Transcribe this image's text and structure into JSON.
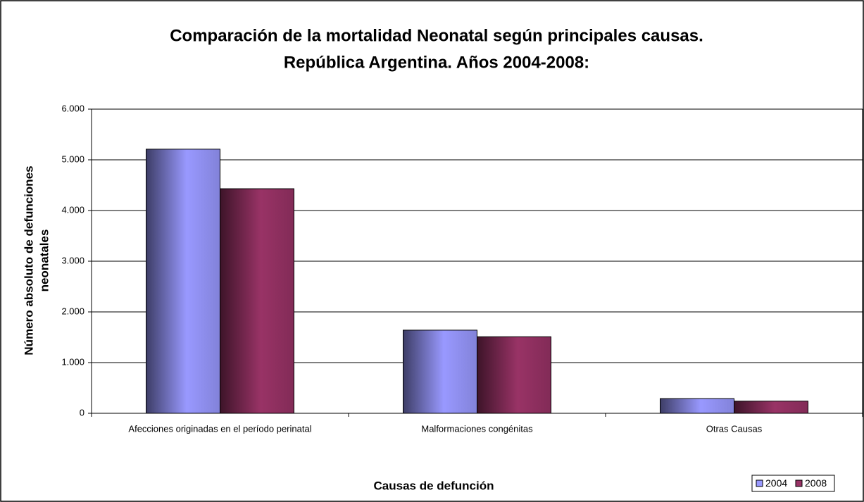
{
  "chart_data": {
    "type": "bar",
    "title": [
      "Comparación de la mortalidad Neonatal según principales causas.",
      "República Argentina. Años 2004-2008:"
    ],
    "x_label": "Causas de defunción",
    "y_label": [
      "Número absoluto de defunciones",
      "neonatales"
    ],
    "categories": [
      "Afecciones originadas en el período perinatal",
      "Malformaciones congénitas",
      "Otras Causas"
    ],
    "series": [
      {
        "name": "2004",
        "color": "#9999ff",
        "values": [
          5210,
          1640,
          290
        ]
      },
      {
        "name": "2008",
        "color": "#993366",
        "values": [
          4430,
          1510,
          240
        ]
      }
    ],
    "ylim": [
      0,
      6000
    ],
    "yticks": [
      0,
      {
        "value": 1000,
        "label": "1.000"
      },
      {
        "value": 2000,
        "label": "2.000"
      },
      {
        "value": 3000,
        "label": "3.000"
      },
      {
        "value": 4000,
        "label": "4.000"
      },
      {
        "value": 5000,
        "label": "5.000"
      },
      {
        "value": 6000,
        "label": "6.000"
      }
    ],
    "grid": true,
    "legend": "lower right"
  }
}
